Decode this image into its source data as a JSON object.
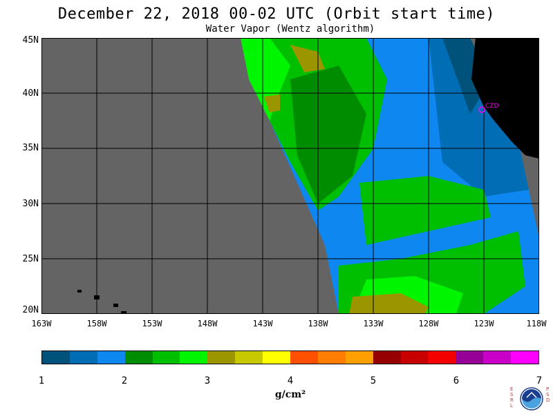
{
  "header": {
    "title": "December 22, 2018  00-02 UTC  (Orbit start time)",
    "subtitle": "Water Vapor (Wentz algorithm)"
  },
  "axes": {
    "lat_labels": [
      "45N",
      "40N",
      "35N",
      "30N",
      "25N",
      "20N"
    ],
    "lon_labels": [
      "163W",
      "158W",
      "153W",
      "148W",
      "143W",
      "138W",
      "133W",
      "128W",
      "123W",
      "118W"
    ]
  },
  "map": {
    "station_label": "CZD",
    "colors": {
      "no_data": "#646464",
      "land": "#000000",
      "grid": "#000000",
      "station": "#ff00ff"
    }
  },
  "colorbar": {
    "colors": [
      "#00527a",
      "#006db4",
      "#0f87f0",
      "#008c00",
      "#00be00",
      "#00f500",
      "#9b9600",
      "#c8c800",
      "#ffff00",
      "#ff5000",
      "#ff7d00",
      "#ffa000",
      "#960000",
      "#c80000",
      "#f50000",
      "#960096",
      "#c800c8",
      "#ff00ff"
    ],
    "tick_labels": [
      "1",
      "2",
      "3",
      "4",
      "5",
      "6",
      "7"
    ],
    "units": "g/cm²"
  },
  "logo": {
    "left_letters": "E S R L",
    "right_letters": "P S D",
    "name": "NOAA"
  }
}
